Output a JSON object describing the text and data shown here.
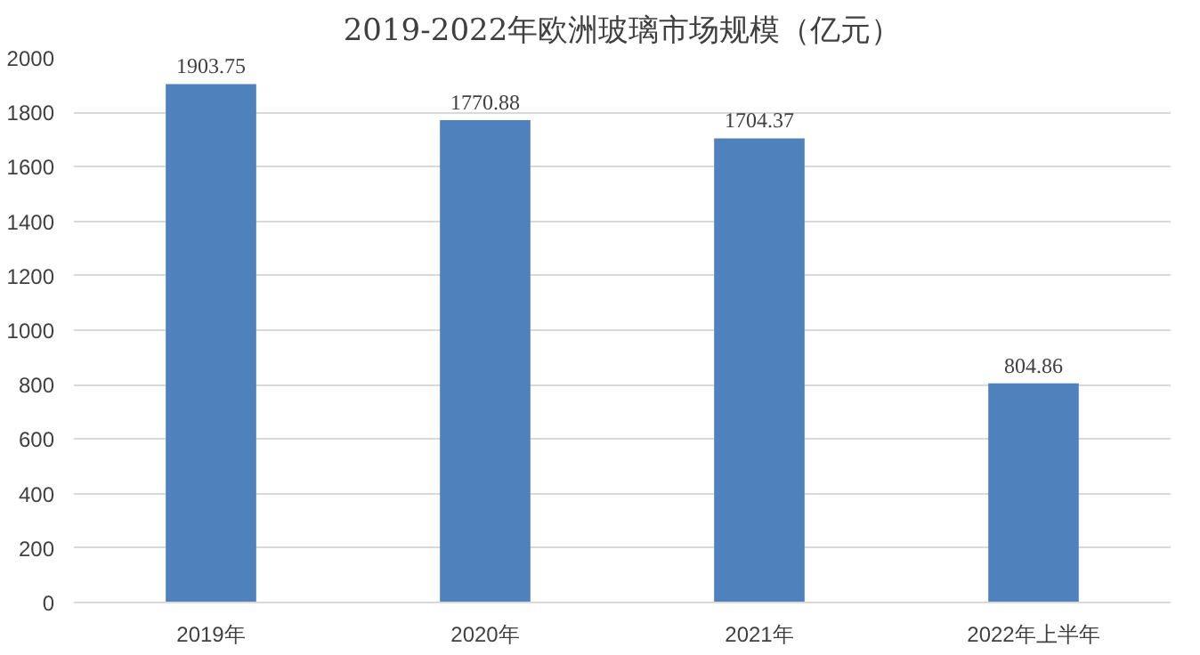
{
  "chart_data": {
    "type": "bar",
    "title": "2019-2022年欧洲玻璃市场规模（亿元）",
    "categories": [
      "2019年",
      "2020年",
      "2021年",
      "2022年上半年"
    ],
    "values": [
      1903.75,
      1770.88,
      1704.37,
      804.86
    ],
    "color": "#4f81bd",
    "ylim": [
      0,
      2000
    ],
    "yticks": [
      0,
      200,
      400,
      600,
      800,
      1000,
      1200,
      1400,
      1600,
      1800,
      2000
    ],
    "grid": "y",
    "data_labels": true
  }
}
